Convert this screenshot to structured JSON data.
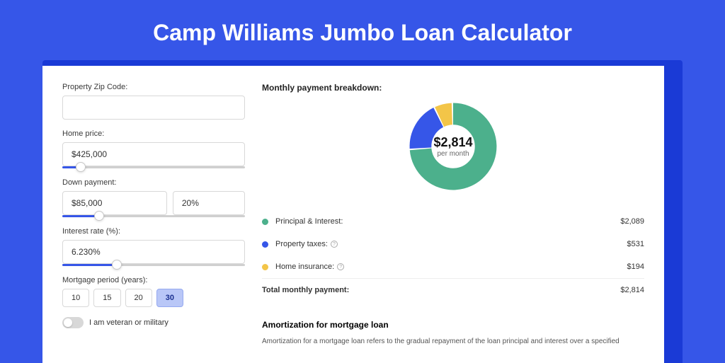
{
  "page": {
    "title": "Camp Williams Jumbo Loan Calculator",
    "bg_color": "#3656e8",
    "outer_card_color": "#1a3ad6",
    "inner_card_color": "#ffffff"
  },
  "form": {
    "zip": {
      "label": "Property Zip Code:",
      "value": ""
    },
    "home_price": {
      "label": "Home price:",
      "value": "$425,000",
      "slider_pct": 10
    },
    "down_payment": {
      "label": "Down payment:",
      "amount": "$85,000",
      "percent": "20%",
      "slider_pct": 20
    },
    "interest_rate": {
      "label": "Interest rate (%):",
      "value": "6.230%",
      "slider_pct": 30
    },
    "mortgage_period": {
      "label": "Mortgage period (years):",
      "options": [
        "10",
        "15",
        "20",
        "30"
      ],
      "selected": "30"
    },
    "veteran": {
      "label": "I am veteran or military",
      "checked": false
    }
  },
  "breakdown": {
    "title": "Monthly payment breakdown:",
    "center_amount": "$2,814",
    "center_sub": "per month",
    "items": [
      {
        "label": "Principal & Interest:",
        "value": "$2,089",
        "color": "#4cb08c",
        "info": false
      },
      {
        "label": "Property taxes:",
        "value": "$531",
        "color": "#3656e8",
        "info": true
      },
      {
        "label": "Home insurance:",
        "value": "$194",
        "color": "#f3c548",
        "info": true
      }
    ],
    "total": {
      "label": "Total monthly payment:",
      "value": "$2,814"
    },
    "donut": {
      "slices": [
        {
          "color": "#4cb08c",
          "fraction": 0.742
        },
        {
          "color": "#3656e8",
          "fraction": 0.189
        },
        {
          "color": "#f3c548",
          "fraction": 0.069
        }
      ],
      "thickness": 24,
      "gap_deg": 2
    }
  },
  "amortization": {
    "title": "Amortization for mortgage loan",
    "text": "Amortization for a mortgage loan refers to the gradual repayment of the loan principal and interest over a specified"
  }
}
